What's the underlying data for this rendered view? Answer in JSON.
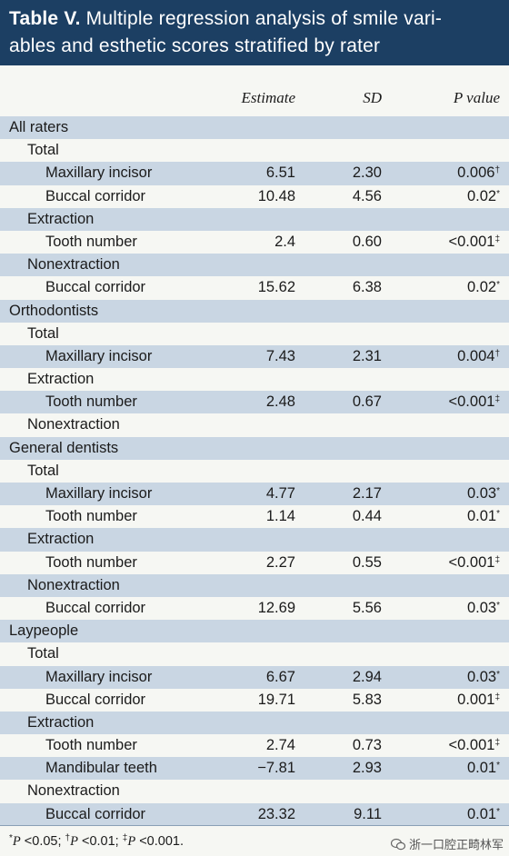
{
  "title": {
    "label": "Table V.",
    "text": " Multiple regression analysis of smile vari-ables and esthetic scores stratified by rater",
    "line1": " Multiple regression analysis of smile vari-",
    "line2": "ables and esthetic scores stratified by rater"
  },
  "columns": {
    "estimate": "Estimate",
    "sd": "SD",
    "p_value_p": "P",
    "p_value_word": " value"
  },
  "rows": [
    {
      "level": 0,
      "label": "All raters",
      "shaded": true
    },
    {
      "level": 1,
      "label": "Total",
      "shaded": false
    },
    {
      "level": 2,
      "label": "Maxillary incisor",
      "estimate": "6.51",
      "sd": "2.30",
      "p": "0.006",
      "mark": "†",
      "shaded": true
    },
    {
      "level": 2,
      "label": "Buccal corridor",
      "estimate": "10.48",
      "sd": "4.56",
      "p": "0.02",
      "mark": "*",
      "shaded": false
    },
    {
      "level": 1,
      "label": "Extraction",
      "shaded": true
    },
    {
      "level": 2,
      "label": "Tooth number",
      "estimate": "2.4",
      "sd": "0.60",
      "p": "<0.001",
      "mark": "‡",
      "shaded": false
    },
    {
      "level": 1,
      "label": "Nonextraction",
      "shaded": true
    },
    {
      "level": 2,
      "label": "Buccal corridor",
      "estimate": "15.62",
      "sd": "6.38",
      "p": "0.02",
      "mark": "*",
      "shaded": false
    },
    {
      "level": 0,
      "label": "Orthodontists",
      "shaded": true
    },
    {
      "level": 1,
      "label": "Total",
      "shaded": false
    },
    {
      "level": 2,
      "label": "Maxillary incisor",
      "estimate": "7.43",
      "sd": "2.31",
      "p": "0.004",
      "mark": "†",
      "shaded": true
    },
    {
      "level": 1,
      "label": "Extraction",
      "shaded": false
    },
    {
      "level": 2,
      "label": "Tooth number",
      "estimate": "2.48",
      "sd": "0.67",
      "p": "<0.001",
      "mark": "‡",
      "shaded": true
    },
    {
      "level": 1,
      "label": "Nonextraction",
      "shaded": false
    },
    {
      "level": 0,
      "label": "General dentists",
      "shaded": true
    },
    {
      "level": 1,
      "label": "Total",
      "shaded": false
    },
    {
      "level": 2,
      "label": "Maxillary incisor",
      "estimate": "4.77",
      "sd": "2.17",
      "p": "0.03",
      "mark": "*",
      "shaded": true
    },
    {
      "level": 2,
      "label": "Tooth number",
      "estimate": "1.14",
      "sd": "0.44",
      "p": "0.01",
      "mark": "*",
      "shaded": false
    },
    {
      "level": 1,
      "label": "Extraction",
      "shaded": true
    },
    {
      "level": 2,
      "label": "Tooth number",
      "estimate": "2.27",
      "sd": "0.55",
      "p": "<0.001",
      "mark": "‡",
      "shaded": false
    },
    {
      "level": 1,
      "label": "Nonextraction",
      "shaded": true
    },
    {
      "level": 2,
      "label": "Buccal corridor",
      "estimate": "12.69",
      "sd": "5.56",
      "p": "0.03",
      "mark": "*",
      "shaded": false
    },
    {
      "level": 0,
      "label": "Laypeople",
      "shaded": true
    },
    {
      "level": 1,
      "label": "Total",
      "shaded": false
    },
    {
      "level": 2,
      "label": "Maxillary incisor",
      "estimate": "6.67",
      "sd": "2.94",
      "p": "0.03",
      "mark": "*",
      "shaded": true
    },
    {
      "level": 2,
      "label": "Buccal corridor",
      "estimate": "19.71",
      "sd": "5.83",
      "p": "0.001",
      "mark": "‡",
      "shaded": false
    },
    {
      "level": 1,
      "label": "Extraction",
      "shaded": true
    },
    {
      "level": 2,
      "label": "Tooth number",
      "estimate": "2.74",
      "sd": "0.73",
      "p": "<0.001",
      "mark": "‡",
      "shaded": false
    },
    {
      "level": 2,
      "label": "Mandibular teeth",
      "estimate": "−7.81",
      "sd": "2.93",
      "p": "0.01",
      "mark": "*",
      "shaded": true
    },
    {
      "level": 1,
      "label": "Nonextraction",
      "shaded": false
    },
    {
      "level": 2,
      "label": "Buccal corridor",
      "estimate": "23.32",
      "sd": "9.11",
      "p": "0.01",
      "mark": "*",
      "shaded": true
    }
  ],
  "footnote": {
    "m1": "*",
    "p1": "P",
    "t1": " <0.05; ",
    "m2": "†",
    "p2": "P",
    "t2": " <0.01; ",
    "m3": "‡",
    "p3": "P",
    "t3": " <0.001."
  },
  "watermark": "浙一口腔正畸林军",
  "colors": {
    "title_bg": "#1c3f63",
    "shaded_row": "#c9d6e3",
    "page_bg": "#f6f7f3"
  }
}
